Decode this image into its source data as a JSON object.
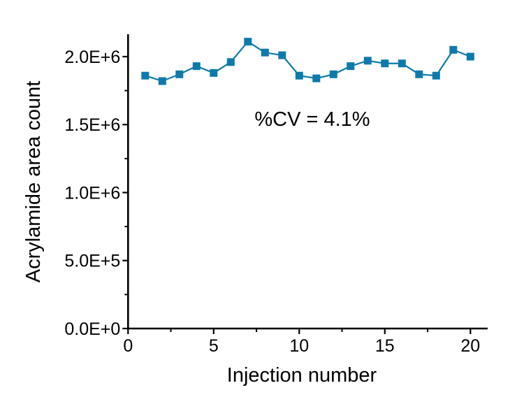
{
  "page": {
    "background": "#ffffff"
  },
  "chart_data": {
    "type": "line",
    "title": "",
    "xlabel": "Injection number",
    "ylabel": "Acrylamide area count",
    "annotation": "%CV = 4.1%",
    "grid": false,
    "legend": false,
    "colors": {
      "series": "#0e7aab",
      "axis": "#000000",
      "text": "#000000",
      "background": "#ffffff"
    },
    "marker": "square",
    "series": [
      {
        "name": "Acrylamide area count",
        "x": [
          1,
          2,
          3,
          4,
          5,
          6,
          7,
          8,
          9,
          10,
          11,
          12,
          13,
          14,
          15,
          16,
          17,
          18,
          19,
          20
        ],
        "y": [
          1860000,
          1820000,
          1870000,
          1930000,
          1880000,
          1960000,
          2110000,
          2030000,
          2010000,
          1860000,
          1840000,
          1870000,
          1930000,
          1970000,
          1950000,
          1950000,
          1870000,
          1860000,
          2050000,
          2000000
        ]
      }
    ],
    "x_axis": {
      "range": [
        0,
        21
      ],
      "major_ticks": [
        0,
        5,
        10,
        15,
        20
      ],
      "major_tick_labels": [
        "0",
        "5",
        "10",
        "15",
        "20"
      ],
      "minor_ticks": [
        2.5,
        7.5,
        12.5,
        17.5
      ]
    },
    "y_axis": {
      "range": [
        0,
        2165000
      ],
      "major_ticks": [
        0,
        500000,
        1000000,
        1500000,
        2000000
      ],
      "major_tick_labels": [
        "0.0E+0",
        "5.0E+5",
        "1.0E+6",
        "1.5E+6",
        "2.0E+6"
      ],
      "minor_ticks": [
        250000,
        750000,
        1250000,
        1750000
      ]
    }
  }
}
